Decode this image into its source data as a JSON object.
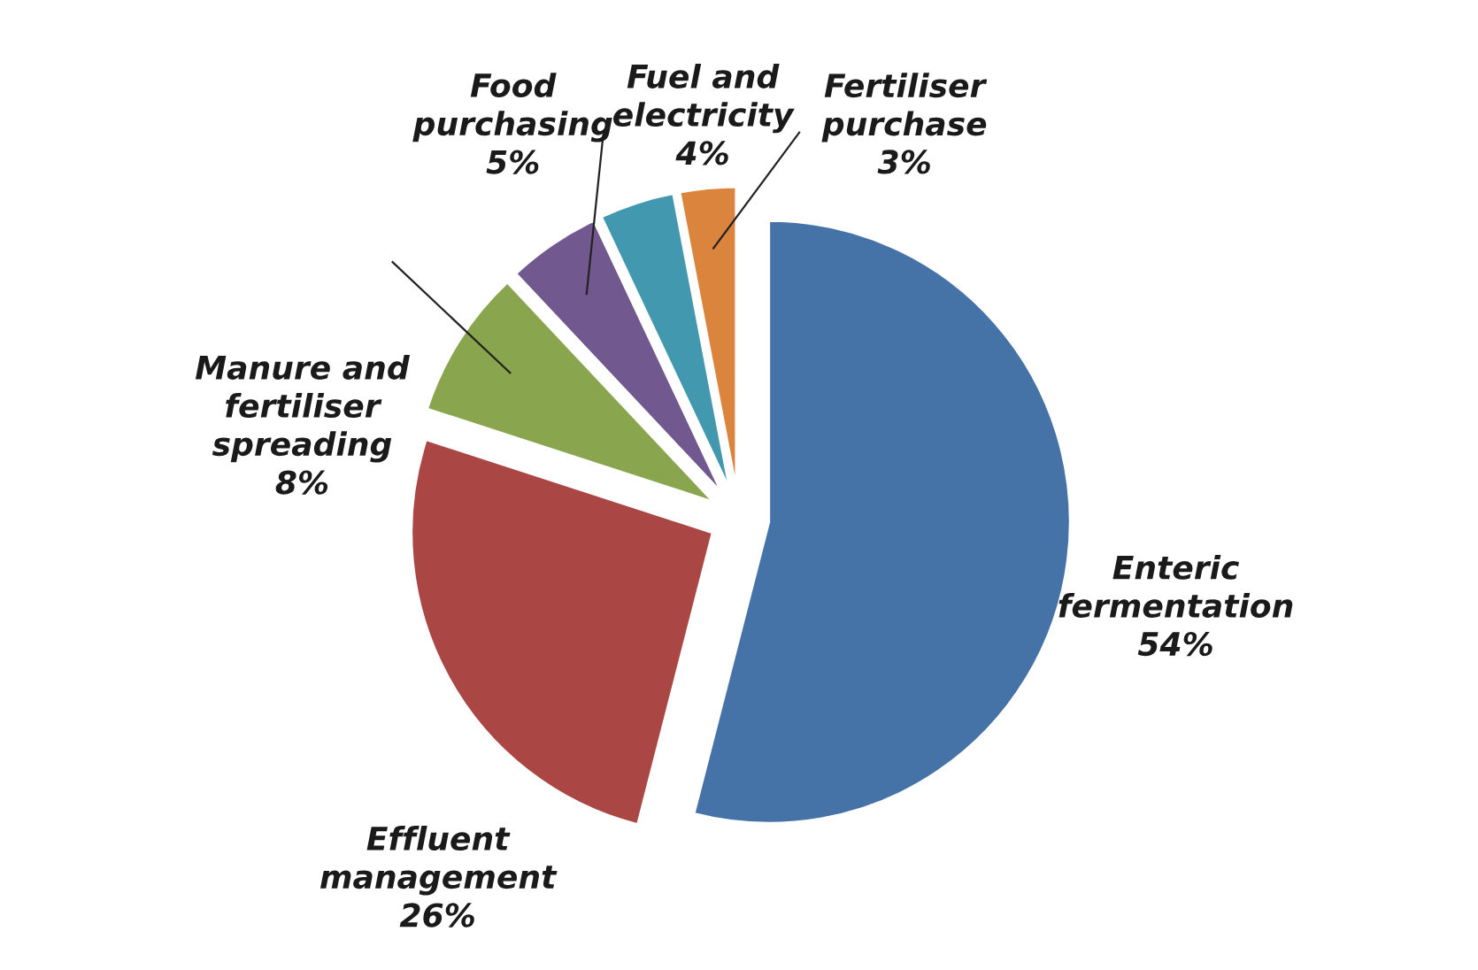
{
  "chart_data": {
    "type": "pie",
    "categories": [
      "Enteric\nfermentation",
      "Effluent\nmanagement",
      "Manure and\nfertiliser\nspreading",
      "Food\npurchasing",
      "Fuel and\nelectricity",
      "Fertiliser\npurchase"
    ],
    "values": [
      54,
      26,
      8,
      5,
      4,
      3
    ],
    "value_labels": [
      "54%",
      "26%",
      "8%",
      "5%",
      "4%",
      "3%"
    ],
    "colors": [
      "#4572a7",
      "#aa4643",
      "#89a54e",
      "#71588f",
      "#4198af",
      "#db843d"
    ]
  }
}
